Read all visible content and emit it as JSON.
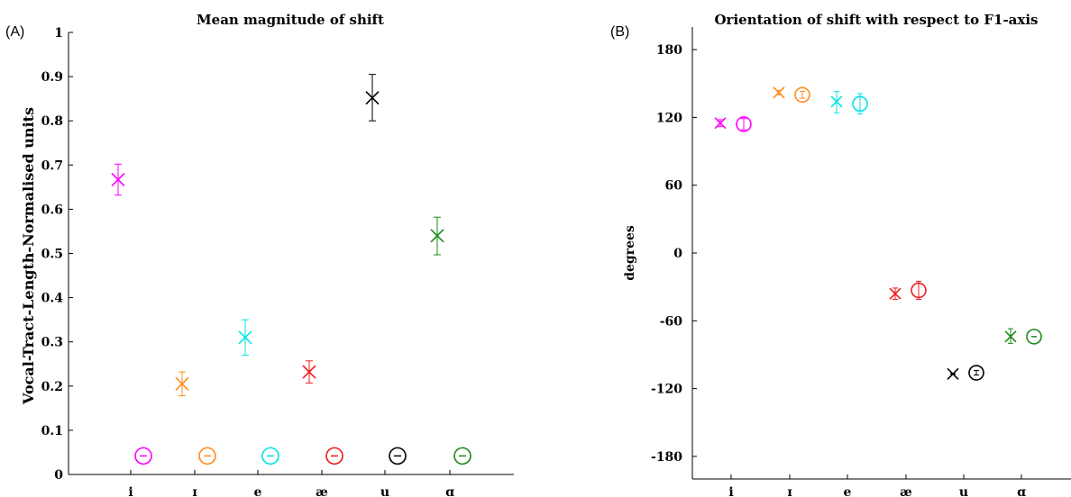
{
  "chart_data": [
    {
      "panel": "(A)",
      "type": "scatter",
      "title": "Mean magnitude of shift",
      "ylabel": "Vocal-Tract-Length-Normalised units",
      "xlabel": "",
      "categories": [
        "i",
        "ɪ",
        "e",
        "æ",
        "u",
        "ɑ"
      ],
      "yticks": [
        "0",
        "0.1",
        "0.2",
        "0.3",
        "0.4",
        "0.5",
        "0.6",
        "0.7",
        "0.8",
        "0.9",
        "1"
      ],
      "ylim": [
        0,
        1
      ],
      "grid": false,
      "colors": [
        "#ff00ff",
        "#ff8c1a",
        "#00e5e5",
        "#ee1c1c",
        "#000000",
        "#1a8c1a"
      ],
      "series": [
        {
          "marker": "cross",
          "values": [
            0.667,
            0.205,
            0.31,
            0.232,
            0.852,
            0.54
          ],
          "err_low": [
            0.632,
            0.178,
            0.27,
            0.207,
            0.8,
            0.497
          ],
          "err_high": [
            0.702,
            0.232,
            0.35,
            0.257,
            0.905,
            0.582
          ]
        },
        {
          "marker": "circle",
          "values": [
            0.042,
            0.042,
            0.042,
            0.042,
            0.042,
            0.042
          ],
          "err_low": [
            0.042,
            0.042,
            0.042,
            0.042,
            0.042,
            0.042
          ],
          "err_high": [
            0.042,
            0.042,
            0.042,
            0.042,
            0.042,
            0.042
          ]
        }
      ]
    },
    {
      "panel": "(B)",
      "type": "scatter",
      "title": "Orientation of shift with respect to F1-axis",
      "ylabel": "degrees",
      "xlabel": "",
      "categories": [
        "i",
        "ɪ",
        "e",
        "æ",
        "u",
        "ɑ"
      ],
      "yticks": [
        "-180",
        "-120",
        "-60",
        "0",
        "60",
        "120",
        "180"
      ],
      "ylim": [
        -200,
        200
      ],
      "grid": false,
      "colors": [
        "#ff00ff",
        "#ff8c1a",
        "#00e5e5",
        "#ee1c1c",
        "#000000",
        "#1a8c1a"
      ],
      "series": [
        {
          "marker": "cross",
          "values": [
            115,
            142,
            134,
            -36,
            -107,
            -74
          ],
          "err_low": [
            112,
            140,
            124,
            -41,
            -107,
            -80
          ],
          "err_high": [
            118,
            144,
            143,
            -31,
            -107,
            -67
          ]
        },
        {
          "marker": "circle",
          "values": [
            114,
            140,
            132,
            -33,
            -106,
            -74
          ],
          "err_low": [
            109,
            137,
            123,
            -41,
            -108,
            -74
          ],
          "err_high": [
            119,
            143,
            141,
            -25,
            -104,
            -74
          ]
        }
      ]
    }
  ]
}
